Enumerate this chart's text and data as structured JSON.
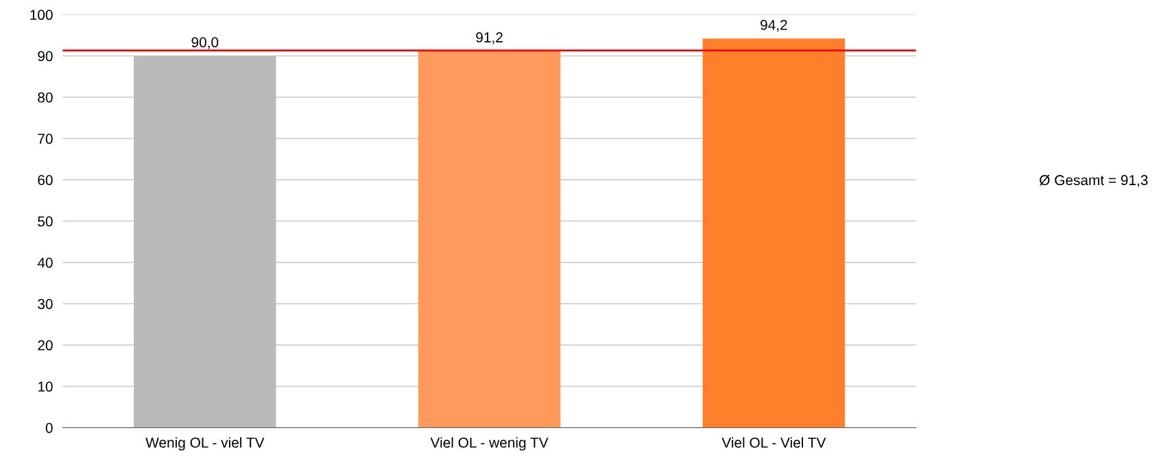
{
  "chart_data": {
    "type": "bar",
    "categories": [
      "Wenig OL - viel TV",
      "Viel OL - wenig TV",
      "Viel OL - Viel TV"
    ],
    "values": [
      90.0,
      91.2,
      94.2
    ],
    "colors": [
      "#bababa",
      "#ff9a5c",
      "#ff7f2a"
    ],
    "value_labels": [
      "90,0",
      "91,2",
      "94,2"
    ],
    "ylim": [
      0,
      100
    ],
    "yticks": [
      0,
      10,
      20,
      30,
      40,
      50,
      60,
      70,
      80,
      90,
      100
    ],
    "grid": "y",
    "ref_lines": [
      {
        "axis": "y",
        "value": 91.3,
        "color": "#ff0000",
        "line_style": "solid"
      }
    ],
    "annotations": [
      "Ø Gesamt = 91,3"
    ]
  }
}
